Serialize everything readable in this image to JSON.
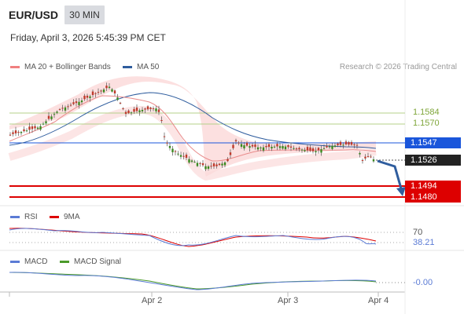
{
  "header": {
    "symbol": "EUR/USD",
    "timeframe": "30 MIN",
    "datetime": "Friday, April 3, 2026 5:45:39 PM CET"
  },
  "legend_main": {
    "ma20": {
      "label": "MA 20 + Bollinger Bands",
      "color": "#f08080"
    },
    "ma50": {
      "label": "MA 50",
      "color": "#2f5d9e"
    }
  },
  "credit": "Research © 2026 Trading Central",
  "levels": {
    "r2": {
      "value": "1.1584",
      "color": "#7fa63a"
    },
    "r1": {
      "value": "1.1570",
      "color": "#7fa63a"
    },
    "pivot": {
      "value": "1.1547",
      "color": "#1a56db"
    },
    "last": {
      "value": "1.1526",
      "color": "#222222"
    },
    "s1": {
      "value": "1.1494",
      "color": "#dd0000"
    },
    "s2": {
      "value": "1.1480",
      "color": "#dd0000"
    }
  },
  "legend_rsi": {
    "rsi": {
      "label": "RSI",
      "color": "#5b7bd5"
    },
    "ma9": {
      "label": "9MA",
      "color": "#dd0000"
    }
  },
  "rsi": {
    "level": "70",
    "value": "38.21"
  },
  "legend_macd": {
    "macd": {
      "label": "MACD",
      "color": "#5b7bd5"
    },
    "signal": {
      "label": "MACD Signal",
      "color": "#4b9a2a"
    }
  },
  "macd": {
    "value": "-0.00"
  },
  "xaxis": {
    "labels": [
      "Apr 2",
      "Apr 3",
      "Apr 4"
    ]
  }
}
